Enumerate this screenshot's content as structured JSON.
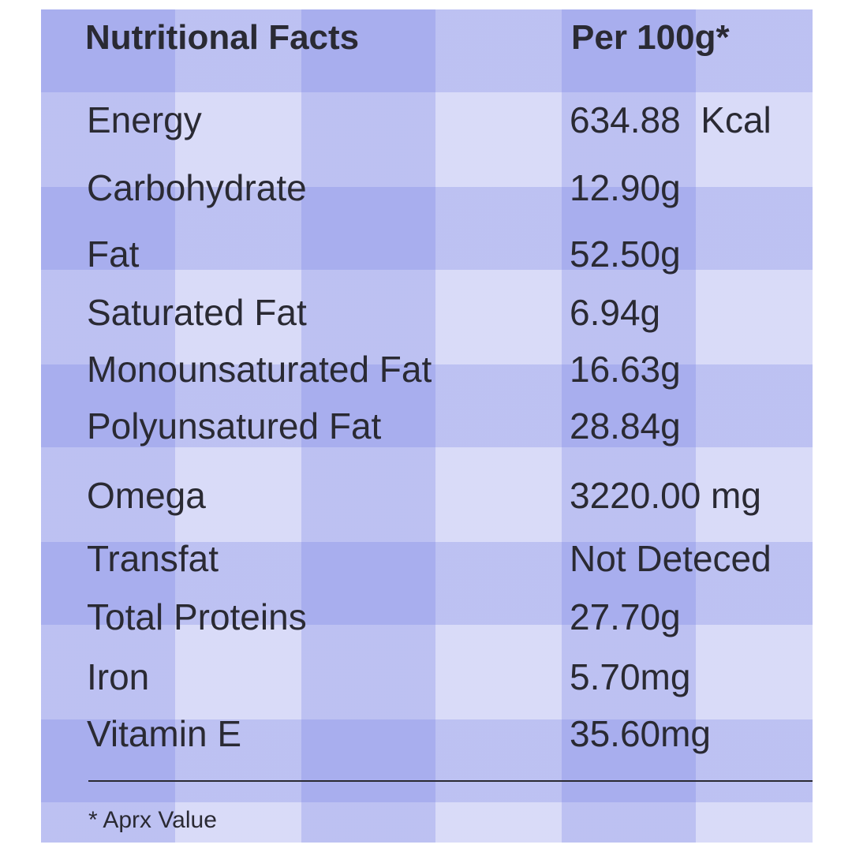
{
  "header": {
    "title": "Nutritional Facts",
    "column": "Per 100g*"
  },
  "table": {
    "rows": [
      [
        "Energy",
        "634.88  Kcal"
      ],
      [
        "Carbohydrate",
        "12.90g"
      ],
      [
        "Fat",
        "52.50g"
      ],
      [
        "Saturated Fat",
        "6.94g"
      ],
      [
        "Monounsaturated Fat",
        "16.63g"
      ],
      [
        "Polyunsatured Fat",
        "28.84g"
      ],
      [
        "Omega",
        "3220.00 mg"
      ],
      [
        "Transfat",
        "Not Deteced"
      ],
      [
        "Total Proteins",
        "27.70g"
      ],
      [
        "Iron",
        "5.70mg"
      ],
      [
        "Vitamin E",
        "35.60mg"
      ]
    ]
  },
  "footnote": "* Aprx Value"
}
